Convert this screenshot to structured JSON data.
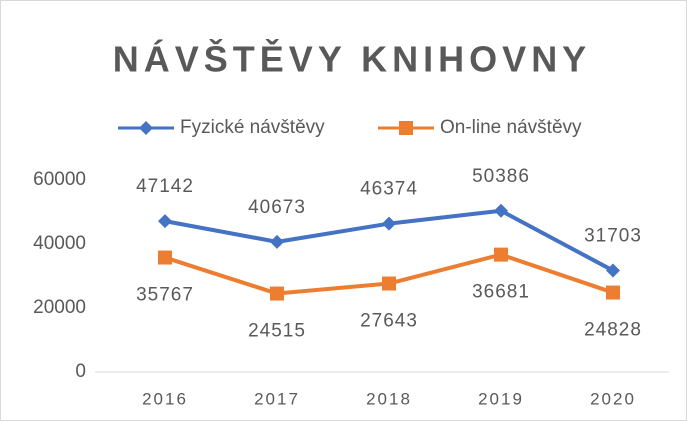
{
  "chart_data": {
    "type": "line",
    "title": "NÁVŠTĚVY KNIHOVNY",
    "categories": [
      "2016",
      "2017",
      "2018",
      "2019",
      "2020"
    ],
    "series": [
      {
        "name": "Fyzické návštěvy",
        "color": "#4472c4",
        "marker": "diamond",
        "values": [
          47142,
          40673,
          46374,
          50386,
          31703
        ]
      },
      {
        "name": "On-line návštěvy",
        "color": "#ed7d31",
        "marker": "square",
        "values": [
          35767,
          24515,
          27643,
          36681,
          24828
        ]
      }
    ],
    "ylim": [
      0,
      60000
    ],
    "yticks": [
      0,
      20000,
      40000,
      60000
    ],
    "grid": false,
    "legend": "top"
  }
}
